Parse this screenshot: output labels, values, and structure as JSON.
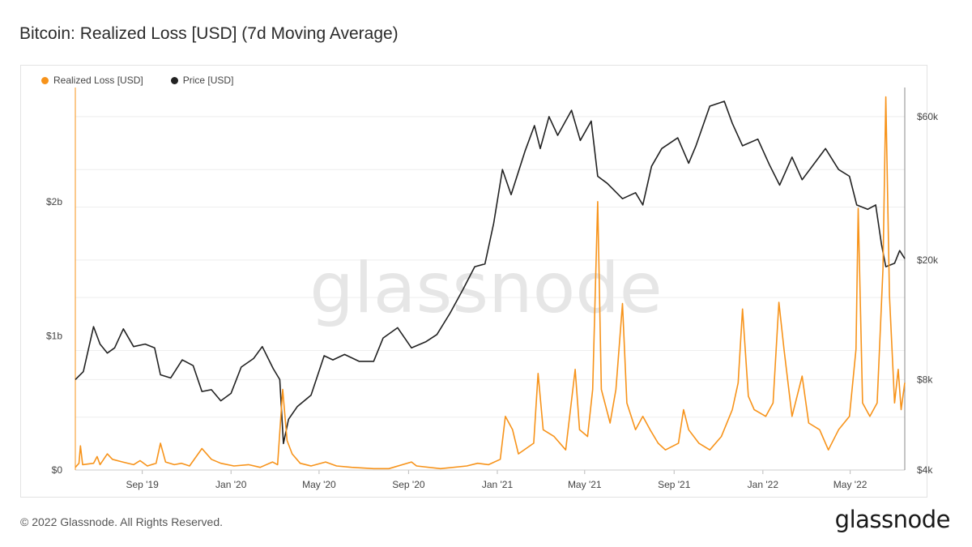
{
  "title": "Bitcoin: Realized Loss [USD] (7d Moving Average)",
  "watermark": "glassnode",
  "footer": {
    "copyright": "© 2022 Glassnode. All Rights Reserved.",
    "logo": "glassnode"
  },
  "colors": {
    "realized_loss": "#f7931a",
    "price": "#222222",
    "grid": "#eeeeee"
  },
  "chart_data": {
    "type": "line",
    "legend": [
      "Realized Loss [USD]",
      "Price [USD]"
    ],
    "legend_position": "top-left",
    "grid": true,
    "x_ticks": [
      "Sep '19",
      "Jan '20",
      "May '20",
      "Sep '20",
      "Jan '21",
      "May '21",
      "Sep '21",
      "Jan '22",
      "May '22"
    ],
    "x_range": [
      "2019-06-01",
      "2022-07-15"
    ],
    "y_left": {
      "ticks": [
        {
          "v": 0,
          "label": "$0"
        },
        {
          "v": 1,
          "label": "$1b"
        },
        {
          "v": 2,
          "label": "$2b"
        }
      ],
      "unit": "USD billions",
      "range": [
        0,
        2.85
      ]
    },
    "y_right": {
      "scale": "log",
      "ticks": [
        {
          "v": 4000,
          "label": "$4k"
        },
        {
          "v": 8000,
          "label": "$8k"
        },
        {
          "v": 20000,
          "label": "$20k"
        },
        {
          "v": 60000,
          "label": "$60k"
        }
      ],
      "range": [
        4000,
        75000
      ]
    },
    "series": [
      {
        "name": "Price [USD]",
        "axis": "right",
        "points": [
          [
            "2019-06-01",
            8000
          ],
          [
            "2019-06-12",
            8500
          ],
          [
            "2019-06-26",
            12000
          ],
          [
            "2019-07-05",
            10500
          ],
          [
            "2019-07-15",
            9800
          ],
          [
            "2019-07-25",
            10200
          ],
          [
            "2019-08-06",
            11800
          ],
          [
            "2019-08-20",
            10300
          ],
          [
            "2019-09-05",
            10500
          ],
          [
            "2019-09-18",
            10200
          ],
          [
            "2019-09-26",
            8300
          ],
          [
            "2019-10-10",
            8100
          ],
          [
            "2019-10-26",
            9300
          ],
          [
            "2019-11-10",
            8900
          ],
          [
            "2019-11-22",
            7300
          ],
          [
            "2019-12-05",
            7400
          ],
          [
            "2019-12-18",
            6800
          ],
          [
            "2020-01-01",
            7200
          ],
          [
            "2020-01-15",
            8800
          ],
          [
            "2020-02-01",
            9400
          ],
          [
            "2020-02-13",
            10300
          ],
          [
            "2020-02-28",
            8700
          ],
          [
            "2020-03-08",
            8000
          ],
          [
            "2020-03-13",
            4900
          ],
          [
            "2020-03-20",
            5900
          ],
          [
            "2020-04-01",
            6500
          ],
          [
            "2020-04-20",
            7100
          ],
          [
            "2020-05-08",
            9600
          ],
          [
            "2020-05-20",
            9300
          ],
          [
            "2020-06-05",
            9700
          ],
          [
            "2020-06-25",
            9200
          ],
          [
            "2020-07-15",
            9200
          ],
          [
            "2020-07-28",
            11000
          ],
          [
            "2020-08-17",
            11900
          ],
          [
            "2020-09-05",
            10200
          ],
          [
            "2020-09-25",
            10700
          ],
          [
            "2020-10-10",
            11300
          ],
          [
            "2020-10-28",
            13300
          ],
          [
            "2020-11-15",
            16000
          ],
          [
            "2020-12-01",
            19000
          ],
          [
            "2020-12-15",
            19400
          ],
          [
            "2020-12-27",
            26500
          ],
          [
            "2021-01-08",
            40000
          ],
          [
            "2021-01-20",
            33000
          ],
          [
            "2021-02-08",
            46000
          ],
          [
            "2021-02-21",
            56000
          ],
          [
            "2021-03-01",
            47000
          ],
          [
            "2021-03-13",
            60000
          ],
          [
            "2021-03-25",
            52000
          ],
          [
            "2021-04-13",
            63000
          ],
          [
            "2021-04-25",
            50000
          ],
          [
            "2021-05-10",
            58000
          ],
          [
            "2021-05-19",
            38000
          ],
          [
            "2021-06-01",
            36000
          ],
          [
            "2021-06-22",
            32000
          ],
          [
            "2021-07-10",
            33500
          ],
          [
            "2021-07-20",
            30500
          ],
          [
            "2021-08-01",
            41000
          ],
          [
            "2021-08-15",
            47000
          ],
          [
            "2021-09-06",
            51000
          ],
          [
            "2021-09-21",
            42000
          ],
          [
            "2021-10-01",
            48000
          ],
          [
            "2021-10-20",
            65000
          ],
          [
            "2021-11-09",
            67500
          ],
          [
            "2021-11-20",
            57000
          ],
          [
            "2021-12-04",
            48000
          ],
          [
            "2021-12-25",
            50500
          ],
          [
            "2022-01-10",
            41500
          ],
          [
            "2022-01-24",
            35500
          ],
          [
            "2022-02-10",
            44000
          ],
          [
            "2022-02-24",
            37000
          ],
          [
            "2022-03-28",
            47000
          ],
          [
            "2022-04-15",
            40000
          ],
          [
            "2022-04-30",
            38000
          ],
          [
            "2022-05-10",
            30500
          ],
          [
            "2022-05-25",
            29500
          ],
          [
            "2022-06-05",
            30500
          ],
          [
            "2022-06-13",
            22500
          ],
          [
            "2022-06-19",
            19000
          ],
          [
            "2022-07-01",
            19500
          ],
          [
            "2022-07-08",
            21500
          ],
          [
            "2022-07-15",
            20200
          ]
        ]
      },
      {
        "name": "Realized Loss [USD]",
        "axis": "left",
        "points": [
          [
            "2019-06-01",
            0.02
          ],
          [
            "2019-06-06",
            0.05
          ],
          [
            "2019-06-08",
            0.18
          ],
          [
            "2019-06-11",
            0.04
          ],
          [
            "2019-06-26",
            0.05
          ],
          [
            "2019-07-01",
            0.1
          ],
          [
            "2019-07-05",
            0.04
          ],
          [
            "2019-07-15",
            0.12
          ],
          [
            "2019-07-22",
            0.08
          ],
          [
            "2019-08-05",
            0.06
          ],
          [
            "2019-08-20",
            0.04
          ],
          [
            "2019-08-29",
            0.07
          ],
          [
            "2019-09-08",
            0.03
          ],
          [
            "2019-09-20",
            0.05
          ],
          [
            "2019-09-26",
            0.2
          ],
          [
            "2019-10-03",
            0.06
          ],
          [
            "2019-10-15",
            0.04
          ],
          [
            "2019-10-25",
            0.05
          ],
          [
            "2019-11-05",
            0.03
          ],
          [
            "2019-11-22",
            0.16
          ],
          [
            "2019-12-05",
            0.08
          ],
          [
            "2019-12-18",
            0.05
          ],
          [
            "2020-01-05",
            0.03
          ],
          [
            "2020-01-25",
            0.04
          ],
          [
            "2020-02-10",
            0.02
          ],
          [
            "2020-02-27",
            0.06
          ],
          [
            "2020-03-05",
            0.04
          ],
          [
            "2020-03-12",
            0.6
          ],
          [
            "2020-03-18",
            0.22
          ],
          [
            "2020-03-25",
            0.12
          ],
          [
            "2020-04-05",
            0.05
          ],
          [
            "2020-04-20",
            0.03
          ],
          [
            "2020-05-10",
            0.06
          ],
          [
            "2020-05-25",
            0.03
          ],
          [
            "2020-06-15",
            0.02
          ],
          [
            "2020-07-15",
            0.01
          ],
          [
            "2020-08-05",
            0.01
          ],
          [
            "2020-09-05",
            0.06
          ],
          [
            "2020-09-12",
            0.03
          ],
          [
            "2020-10-15",
            0.01
          ],
          [
            "2020-11-20",
            0.03
          ],
          [
            "2020-12-05",
            0.05
          ],
          [
            "2020-12-20",
            0.04
          ],
          [
            "2021-01-05",
            0.08
          ],
          [
            "2021-01-12",
            0.4
          ],
          [
            "2021-01-22",
            0.3
          ],
          [
            "2021-01-30",
            0.12
          ],
          [
            "2021-02-20",
            0.2
          ],
          [
            "2021-02-26",
            0.72
          ],
          [
            "2021-03-05",
            0.3
          ],
          [
            "2021-03-20",
            0.25
          ],
          [
            "2021-04-05",
            0.15
          ],
          [
            "2021-04-18",
            0.75
          ],
          [
            "2021-04-24",
            0.3
          ],
          [
            "2021-05-05",
            0.25
          ],
          [
            "2021-05-12",
            0.6
          ],
          [
            "2021-05-19",
            2.0
          ],
          [
            "2021-05-24",
            0.6
          ],
          [
            "2021-06-05",
            0.35
          ],
          [
            "2021-06-13",
            0.6
          ],
          [
            "2021-06-22",
            1.24
          ],
          [
            "2021-06-28",
            0.5
          ],
          [
            "2021-07-10",
            0.3
          ],
          [
            "2021-07-20",
            0.4
          ],
          [
            "2021-07-30",
            0.3
          ],
          [
            "2021-08-10",
            0.2
          ],
          [
            "2021-08-20",
            0.15
          ],
          [
            "2021-09-07",
            0.2
          ],
          [
            "2021-09-14",
            0.45
          ],
          [
            "2021-09-21",
            0.3
          ],
          [
            "2021-10-05",
            0.2
          ],
          [
            "2021-10-20",
            0.15
          ],
          [
            "2021-11-05",
            0.25
          ],
          [
            "2021-11-20",
            0.45
          ],
          [
            "2021-11-28",
            0.65
          ],
          [
            "2021-12-04",
            1.2
          ],
          [
            "2021-12-12",
            0.55
          ],
          [
            "2021-12-20",
            0.45
          ],
          [
            "2022-01-05",
            0.4
          ],
          [
            "2022-01-15",
            0.5
          ],
          [
            "2022-01-23",
            1.25
          ],
          [
            "2022-01-30",
            0.9
          ],
          [
            "2022-02-10",
            0.4
          ],
          [
            "2022-02-24",
            0.7
          ],
          [
            "2022-03-05",
            0.35
          ],
          [
            "2022-03-20",
            0.3
          ],
          [
            "2022-04-01",
            0.15
          ],
          [
            "2022-04-15",
            0.3
          ],
          [
            "2022-04-30",
            0.4
          ],
          [
            "2022-05-09",
            0.9
          ],
          [
            "2022-05-12",
            1.95
          ],
          [
            "2022-05-18",
            0.5
          ],
          [
            "2022-05-28",
            0.4
          ],
          [
            "2022-06-07",
            0.5
          ],
          [
            "2022-06-15",
            1.5
          ],
          [
            "2022-06-19",
            2.78
          ],
          [
            "2022-06-24",
            1.3
          ],
          [
            "2022-07-01",
            0.5
          ],
          [
            "2022-07-06",
            0.75
          ],
          [
            "2022-07-10",
            0.45
          ],
          [
            "2022-07-15",
            0.65
          ]
        ]
      }
    ]
  }
}
